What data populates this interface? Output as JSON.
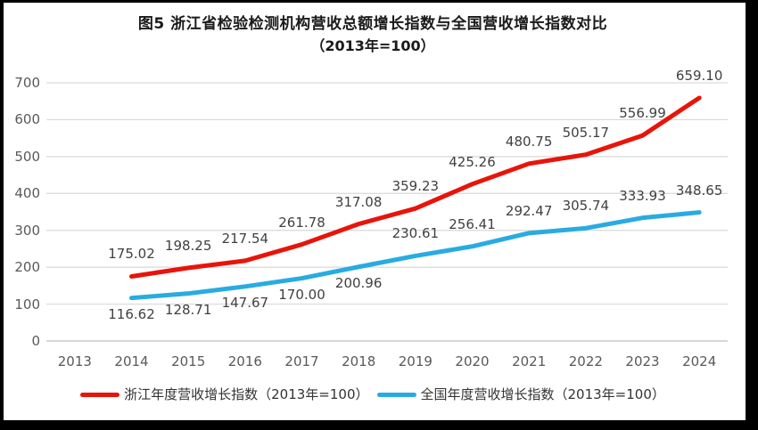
{
  "title": {
    "line1": "图5  浙江省检验检测机构营收总额增长指数与全国营收增长指数对比",
    "line2": "（2013年=100）"
  },
  "chart_data": {
    "type": "line",
    "title": "图5 浙江省检验检测机构营收总额增长指数与全国营收增长指数对比（2013年=100）",
    "categories": [
      "2013",
      "2014",
      "2015",
      "2016",
      "2017",
      "2018",
      "2019",
      "2020",
      "2021",
      "2022",
      "2023",
      "2024"
    ],
    "series": [
      {
        "name": "浙江年度营收增长指数（2013年=100）",
        "color": "#e8140a",
        "values": [
          null,
          175.02,
          198.25,
          217.54,
          261.78,
          317.08,
          359.23,
          425.26,
          480.75,
          505.17,
          556.99,
          659.1
        ],
        "label_sides": [
          null,
          "above",
          "above",
          "above",
          "above",
          "above",
          "above",
          "above",
          "above",
          "above",
          "above",
          "above"
        ]
      },
      {
        "name": "全国年度营收增长指数（2013年=100）",
        "color": "#29abe2",
        "values": [
          null,
          116.62,
          128.71,
          147.67,
          170.0,
          200.96,
          230.61,
          256.41,
          292.47,
          305.74,
          333.93,
          348.65
        ],
        "label_sides": [
          null,
          "below",
          "below",
          "below",
          "below",
          "below",
          "above",
          "above",
          "above",
          "above",
          "above",
          "above"
        ]
      }
    ],
    "ylim": [
      0,
      700
    ],
    "ytick_step": 100,
    "yticks": [
      0,
      100,
      200,
      300,
      400,
      500,
      600,
      700
    ],
    "value_decimals": 2,
    "grid": true,
    "legend_position": "bottom",
    "axis_text_color": "#595959",
    "data_label_color": "#404040",
    "gridline_color": "#d9d9d9",
    "axisline_color": "#bfbfbf"
  }
}
